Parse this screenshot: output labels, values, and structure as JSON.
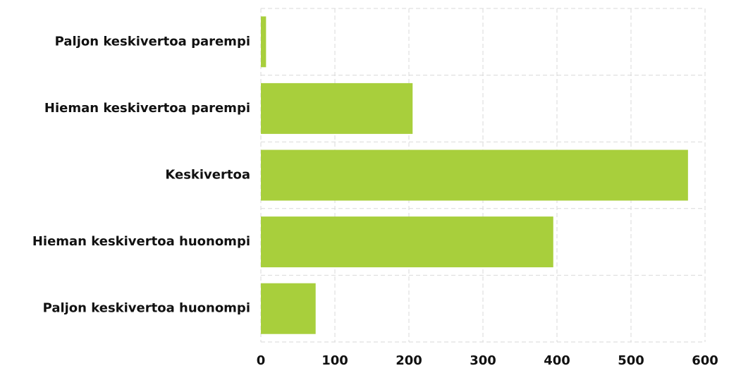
{
  "chart_data": {
    "type": "bar",
    "orientation": "horizontal",
    "categories": [
      "Paljon keskivertoa parempi",
      "Hieman keskivertoa parempi",
      "Keskivertoa",
      "Hieman keskivertoa huonompi",
      "Paljon keskivertoa huonompi"
    ],
    "values": [
      7,
      205,
      577,
      395,
      74
    ],
    "color": "#a8cf3c",
    "xlim": [
      0,
      600
    ],
    "xticks": [
      0,
      100,
      200,
      300,
      400,
      500,
      600
    ],
    "grid": true
  }
}
